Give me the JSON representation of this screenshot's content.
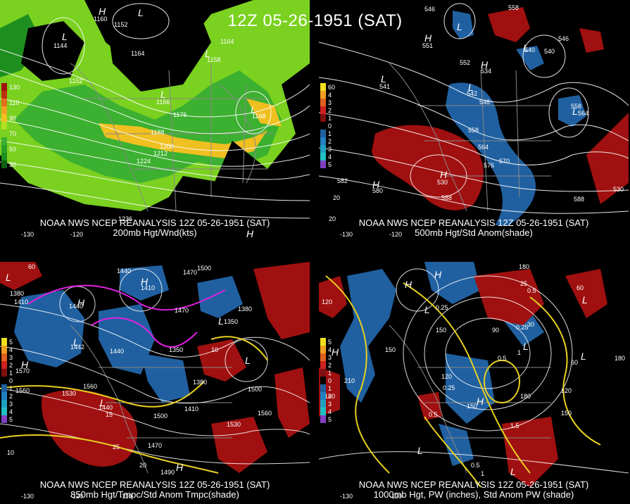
{
  "main_title": "12Z 05-26-1951 (SAT)",
  "colors": {
    "background": "#000000",
    "contour": "#ffffff",
    "map": "#888888",
    "wind_light": "#7ad11f",
    "wind_mid": "#1e8f1e",
    "wind_strong": "#f0c020",
    "anom_pos": "#a01010",
    "anom_neg": "#2060a0",
    "temp_contour": "#e8d020",
    "neg_temp_contour": "#e020e0"
  },
  "panels": [
    {
      "id": "200mb",
      "caption_line1": "NOAA NWS NCEP REANALYSIS 12Z 05-26-1951 (SAT)",
      "caption_line2": "200mb Hgt/Wnd(kts)",
      "scale_labels": [
        "130",
        "110",
        "90",
        "70",
        "50",
        "30"
      ],
      "scale_colors": [
        "#a01010",
        "#e07020",
        "#f0c020",
        "#7ad11f",
        "#3cb030",
        "#1e8f1e"
      ],
      "contour_labels": [
        "1160",
        "1152",
        "1144",
        "1164",
        "1164",
        "1158",
        "1152",
        "1166",
        "1176",
        "1168",
        "1188",
        "1200",
        "1212",
        "1224",
        "1236"
      ],
      "lon_labels": [
        "-130",
        "-120"
      ],
      "highs": [
        "H",
        "H"
      ],
      "lows": [
        "L",
        "L",
        "L",
        "L",
        "L"
      ]
    },
    {
      "id": "500mb",
      "caption_line1": "NOAA NWS NCEP REANALYSIS 12Z 05-26-1951 (SAT)",
      "caption_line2": "500mb Hgt/Std Anom(shade)",
      "scale_labels": [
        "60",
        "4",
        "3",
        "2",
        "1",
        "0",
        "1",
        "2",
        "3",
        "4",
        "5"
      ],
      "scale_colors": [
        "#f0e020",
        "#f0a020",
        "#e06020",
        "#d02020",
        "#801010",
        "#000000",
        "#2060a0",
        "#2080c0",
        "#20a0c0",
        "#20c0c0",
        "#8040c0"
      ],
      "contour_labels": [
        "546",
        "558",
        "540",
        "551",
        "552",
        "534",
        "546",
        "540",
        "541",
        "542",
        "546",
        "558",
        "564",
        "558",
        "564",
        "570",
        "576",
        "582",
        "580",
        "530",
        "588",
        "588",
        "20",
        "530",
        "20"
      ],
      "lon_labels": [
        "-130",
        "-120"
      ],
      "highs": [
        "H",
        "H",
        "H",
        "H"
      ],
      "lows": [
        "L",
        "L",
        "L",
        "L",
        "L"
      ]
    },
    {
      "id": "850mb",
      "caption_line1": "NOAA NWS NCEP REANALYSIS 12Z 05-26-1951 (SAT)",
      "caption_line2": "850mb Hgt/Tmpc/Std Anom Tmpc(shade)",
      "scale_labels": [
        "5",
        "4",
        "3",
        "2",
        "1",
        "0",
        "1",
        "2",
        "3",
        "4",
        "5"
      ],
      "scale_colors": [
        "#f0e020",
        "#f0a020",
        "#e06020",
        "#d02020",
        "#801010",
        "#000000",
        "#2060a0",
        "#2080c0",
        "#20a0c0",
        "#20c0c0",
        "#8040c0"
      ],
      "contour_labels": [
        "60",
        "1440",
        "1470",
        "1500",
        "1380",
        "1410",
        "1470",
        "1380",
        "1410",
        "1440",
        "1350",
        "1442",
        "1440",
        "1350",
        "10",
        "1570",
        "1560",
        "1530",
        "1560",
        "1380",
        "1410",
        "1500",
        "1440",
        "15",
        "1500",
        "1560",
        "1530",
        "25",
        "1470",
        "20",
        "1490",
        "10",
        "-130",
        "-120",
        "-110"
      ],
      "lon_labels": [
        "-130",
        "-120",
        "-110"
      ],
      "highs": [
        "H",
        "H",
        "H",
        "H"
      ],
      "lows": [
        "L",
        "L",
        "L",
        "L",
        "L"
      ]
    },
    {
      "id": "1000mb",
      "caption_line1": "NOAA NWS NCEP REANALYSIS 12Z 05-26-1951 (SAT)",
      "caption_line2": "1000mb Hgt, PW (inches), Std Anom PW (shade)",
      "scale_labels": [
        "5",
        "4",
        "3",
        "2",
        "1",
        "0",
        "1",
        "2",
        "3",
        "4",
        "5"
      ],
      "scale_colors": [
        "#f0e020",
        "#f0a020",
        "#e06020",
        "#d02020",
        "#801010",
        "#000000",
        "#2060a0",
        "#2080c0",
        "#20a0c0",
        "#20c0c0",
        "#8040c0"
      ],
      "contour_labels": [
        "180",
        "25",
        "0.5",
        "60",
        "120",
        "0.25",
        "90",
        "30",
        "150",
        "150",
        "0.25",
        "180",
        "0.5",
        "1",
        "60",
        "210",
        "0.25",
        "120",
        "120",
        "180",
        "0.5",
        "150",
        "150",
        "180",
        "1.5",
        "0.5",
        "1"
      ],
      "lon_labels": [
        "-130",
        "-120"
      ],
      "highs": [
        "H",
        "H",
        "H",
        "H"
      ],
      "lows": [
        "L",
        "L",
        "L",
        "L",
        "L",
        "L"
      ]
    }
  ]
}
